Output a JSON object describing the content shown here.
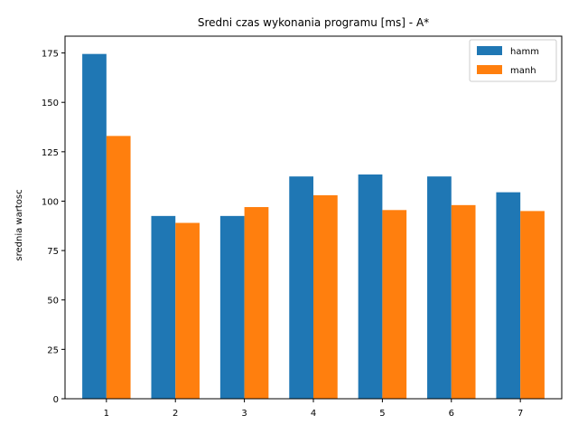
{
  "chart_data": {
    "type": "bar",
    "title": "Sredni czas wykonania programu [ms] - A*",
    "xlabel": "",
    "ylabel": "srednia wartosc",
    "categories": [
      "1",
      "2",
      "3",
      "4",
      "5",
      "6",
      "7"
    ],
    "series": [
      {
        "name": "hamm",
        "color": "#1f77b4",
        "values": [
          174.5,
          92.5,
          92.5,
          112.5,
          113.5,
          112.5,
          104.5
        ]
      },
      {
        "name": "manh",
        "color": "#ff7f0e",
        "values": [
          133,
          89,
          97,
          103,
          95.5,
          98,
          95
        ]
      }
    ],
    "ylim": [
      0,
      183.5
    ],
    "yticks": [
      0,
      25,
      50,
      75,
      100,
      125,
      150,
      175
    ],
    "grid": false,
    "legend_position": "top-right"
  }
}
